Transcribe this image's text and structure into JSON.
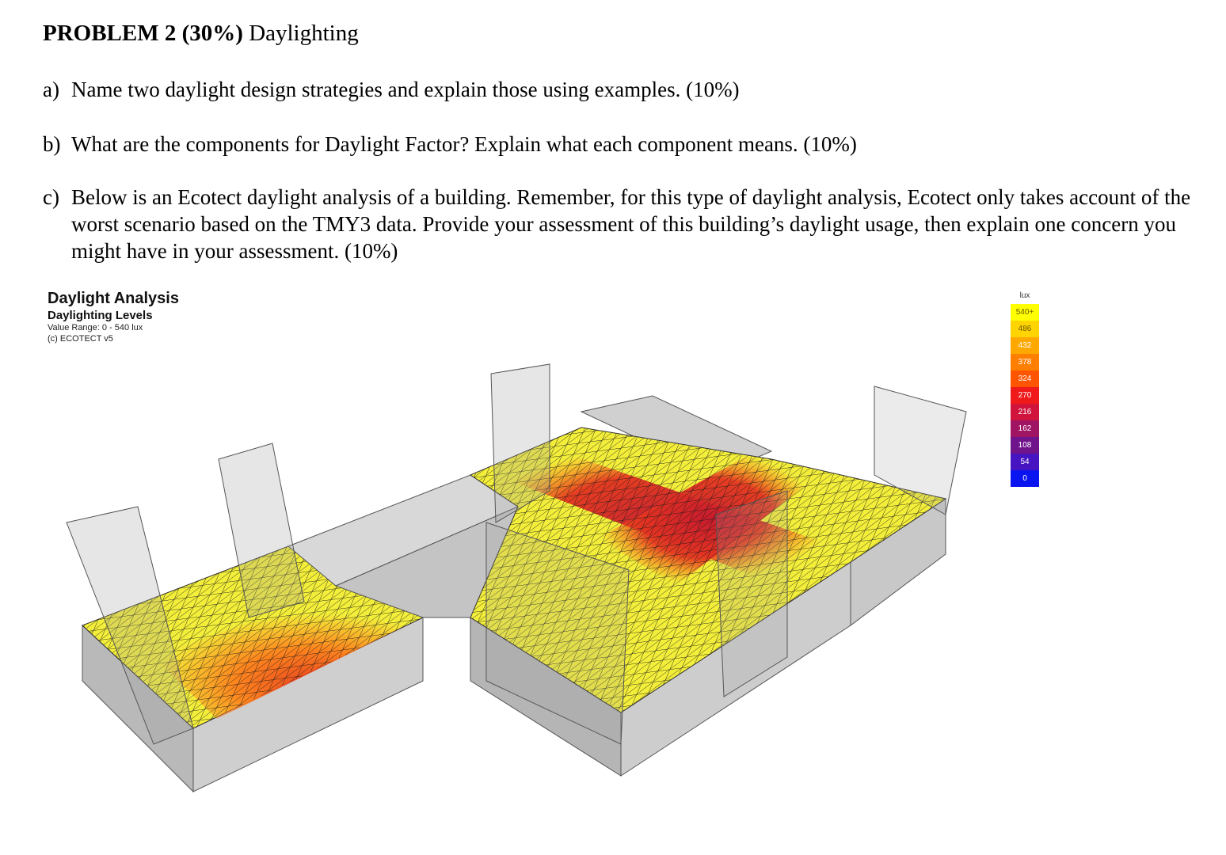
{
  "problem": {
    "heading_bold": "PROBLEM 2 (30%)",
    "heading_rest": " Daylighting"
  },
  "questions": [
    {
      "label": "a)",
      "text": "Name two daylight design strategies and explain those using examples.  (10%)"
    },
    {
      "label": "b)",
      "text": "What are the components for Daylight Factor? Explain what each component means. (10%)"
    },
    {
      "label": "c)",
      "text": "Below is an Ecotect daylight analysis of a building. Remember, for this type of daylight analysis, Ecotect only takes account of the worst scenario based on the TMY3 data. Provide your assessment of this building’s daylight usage, then explain one concern you might have in your assessment. (10%)"
    }
  ],
  "figure": {
    "title": "Daylight Analysis",
    "subtitle": "Daylighting Levels",
    "value_range": "Value Range: 0 - 540 lux",
    "copyright": "(c) ECOTECT v5"
  },
  "legend": {
    "unit": "lux",
    "entries": [
      {
        "label": "540+",
        "color": "#ffff00"
      },
      {
        "label": "486",
        "color": "#ffd400"
      },
      {
        "label": "432",
        "color": "#ffa800"
      },
      {
        "label": "378",
        "color": "#ff7f00"
      },
      {
        "label": "324",
        "color": "#ff5500"
      },
      {
        "label": "270",
        "color": "#f01a1a"
      },
      {
        "label": "216",
        "color": "#d0143c"
      },
      {
        "label": "162",
        "color": "#a01464"
      },
      {
        "label": "108",
        "color": "#70148c"
      },
      {
        "label": "54",
        "color": "#4614c0"
      },
      {
        "label": "0",
        "color": "#0a14f0"
      }
    ]
  }
}
